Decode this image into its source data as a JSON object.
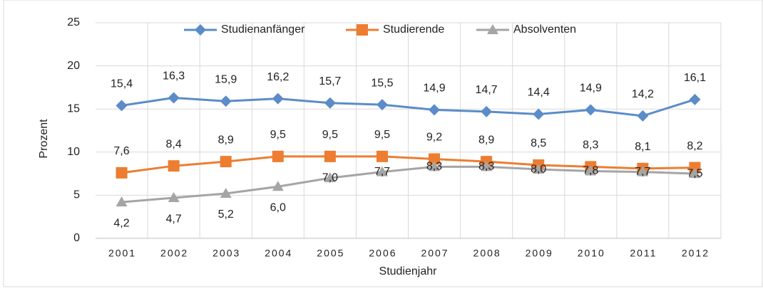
{
  "chart_data": {
    "type": "line",
    "x_label": "Studienjahr",
    "y_label": "Prozent",
    "categories": [
      "2001",
      "2002",
      "2003",
      "2004",
      "2005",
      "2006",
      "2007",
      "2008",
      "2009",
      "2010",
      "2011",
      "2012"
    ],
    "series": [
      {
        "name": "Studienanfänger",
        "color": "#5b8cc8",
        "marker": "diamond",
        "values": [
          15.4,
          16.3,
          15.9,
          16.2,
          15.7,
          15.5,
          14.9,
          14.7,
          14.4,
          14.9,
          14.2,
          16.1
        ],
        "value_labels": [
          "15,4",
          "16,3",
          "15,9",
          "16,2",
          "15,7",
          "15,5",
          "14,9",
          "14,7",
          "14,4",
          "14,9",
          "14,2",
          "16,1"
        ]
      },
      {
        "name": "Studierende",
        "color": "#ed7d31",
        "marker": "square",
        "values": [
          7.6,
          8.4,
          8.9,
          9.5,
          9.5,
          9.5,
          9.2,
          8.9,
          8.5,
          8.3,
          8.1,
          8.2
        ],
        "value_labels": [
          "7,6",
          "8,4",
          "8,9",
          "9,5",
          "9,5",
          "9,5",
          "9,2",
          "8,9",
          "8,5",
          "8,3",
          "8,1",
          "8,2"
        ]
      },
      {
        "name": "Absolventen",
        "color": "#a5a5a5",
        "marker": "triangle",
        "values": [
          4.2,
          4.7,
          5.2,
          6.0,
          7.0,
          7.7,
          8.3,
          8.3,
          8.0,
          7.8,
          7.7,
          7.5
        ],
        "value_labels": [
          "4,2",
          "4,7",
          "5,2",
          "6,0",
          "7,0",
          "7,7",
          "8,3",
          "8,3",
          "8,0",
          "7,8",
          "7,7",
          "7,5"
        ]
      }
    ],
    "ylim": [
      0,
      25
    ],
    "yticks": [
      0,
      5,
      10,
      15,
      20,
      25
    ],
    "grid": true,
    "legend": "top"
  }
}
